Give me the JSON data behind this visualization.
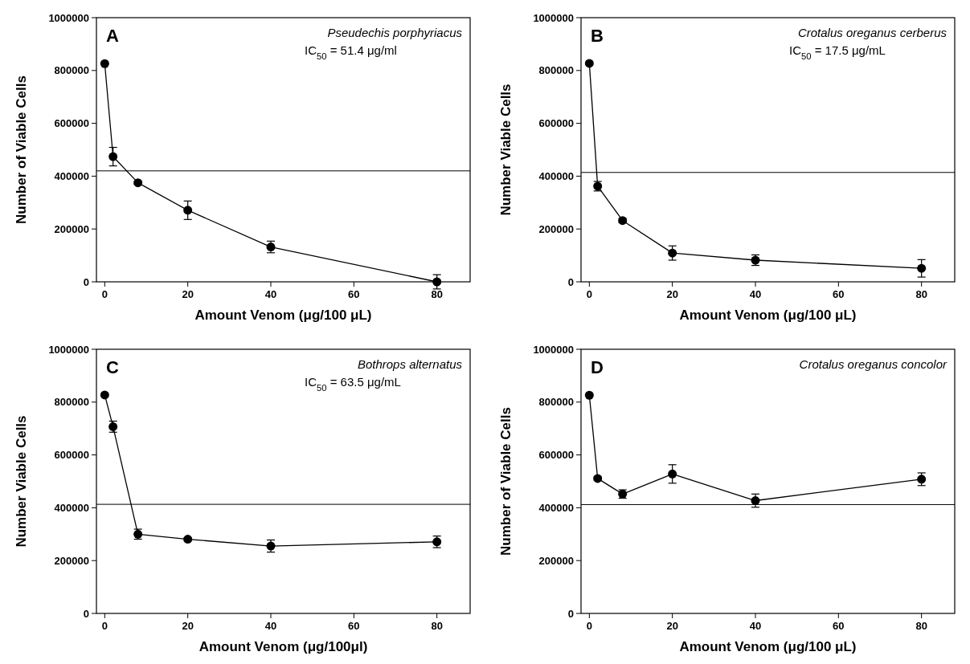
{
  "chart_data": [
    {
      "type": "line",
      "title": "A",
      "xlabel": "Amount Venom (μg/100 μL)",
      "ylabel": "Number of Viable Cells",
      "annotations": [
        "Pseudechis porphyriacus",
        "IC$_{50}$ = 51.4 μg/ml"
      ],
      "x": [
        0,
        2,
        8,
        20,
        40,
        80
      ],
      "series": [
        {
          "color": "#000000",
          "values": [
            826000,
            474000,
            375000,
            271000,
            132000,
            0
          ],
          "errors": [
            null,
            35000,
            5000,
            35000,
            22000,
            27000
          ]
        }
      ],
      "xlim": [
        -2,
        88
      ],
      "xticks": [
        0,
        20,
        40,
        60,
        80
      ],
      "ylim": [
        0,
        1000000
      ],
      "yticks": [
        0,
        200000,
        400000,
        600000,
        800000,
        1000000
      ],
      "ref_lines": [
        {
          "axis": "y",
          "value": 420000,
          "color": "#000000"
        }
      ],
      "marker": "circle",
      "grid": false
    },
    {
      "type": "line",
      "title": "B",
      "xlabel": "Amount Venom (μg/100 μL)",
      "ylabel": "Number Viable Cells",
      "annotations": [
        "Crotalus oreganus cerberus",
        "IC$_{50}$ = 17.5 μg/mL"
      ],
      "x": [
        0,
        2,
        8,
        20,
        40,
        80
      ],
      "series": [
        {
          "color": "#000000",
          "values": [
            827000,
            362000,
            232000,
            109000,
            82000,
            51000
          ],
          "errors": [
            null,
            18000,
            8000,
            27000,
            20000,
            33000
          ]
        }
      ],
      "xlim": [
        -2,
        88
      ],
      "xticks": [
        0,
        20,
        40,
        60,
        80
      ],
      "ylim": [
        0,
        1000000
      ],
      "yticks": [
        0,
        200000,
        400000,
        600000,
        800000,
        1000000
      ],
      "ref_lines": [
        {
          "axis": "y",
          "value": 414000,
          "color": "#000000"
        }
      ],
      "marker": "circle",
      "grid": false
    },
    {
      "type": "line",
      "title": "C",
      "xlabel": "Amount Venom (μg/100μl)",
      "ylabel": "Number Viable Cells",
      "annotations": [
        "Bothrops alternatus",
        "IC$_{50}$ = 63.5 μg/mL"
      ],
      "x": [
        0,
        2,
        8,
        20,
        40,
        80
      ],
      "series": [
        {
          "color": "#000000",
          "values": [
            827000,
            707000,
            300000,
            281000,
            255000,
            271000
          ],
          "errors": [
            null,
            21000,
            19000,
            5000,
            23000,
            22000
          ]
        }
      ],
      "xlim": [
        -2,
        88
      ],
      "xticks": [
        0,
        20,
        40,
        60,
        80
      ],
      "ylim": [
        0,
        1000000
      ],
      "yticks": [
        0,
        200000,
        400000,
        600000,
        800000,
        1000000
      ],
      "ref_lines": [
        {
          "axis": "y",
          "value": 413000,
          "color": "#000000"
        }
      ],
      "marker": "circle",
      "grid": false
    },
    {
      "type": "line",
      "title": "D",
      "xlabel": "Amount Venom (μg/100 μL)",
      "ylabel": "Number of Viable Cells",
      "annotations": [
        "Crotalus oreganus concolor"
      ],
      "x": [
        0,
        2,
        8,
        20,
        40,
        80
      ],
      "series": [
        {
          "color": "#000000",
          "values": [
            826000,
            511000,
            452000,
            528000,
            427000,
            508000
          ],
          "errors": [
            null,
            6000,
            16000,
            35000,
            25000,
            24000
          ]
        }
      ],
      "xlim": [
        -2,
        88
      ],
      "xticks": [
        0,
        20,
        40,
        60,
        80
      ],
      "ylim": [
        0,
        1000000
      ],
      "yticks": [
        0,
        200000,
        400000,
        600000,
        800000,
        1000000
      ],
      "ref_lines": [
        {
          "axis": "y",
          "value": 412000,
          "color": "#000000"
        }
      ],
      "marker": "circle",
      "grid": false
    }
  ]
}
